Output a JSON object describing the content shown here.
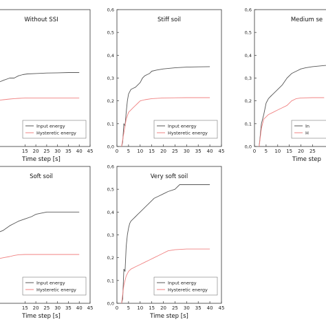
{
  "chart_data": [
    {
      "type": "line",
      "title": "Without SSI",
      "xlabel": "Time step [s]",
      "ylabel": "",
      "xlim": [
        0,
        45
      ],
      "ylim": [
        0,
        0.6
      ],
      "xticks": [
        "15",
        "20",
        "25",
        "30",
        "35",
        "40",
        "45"
      ],
      "yticks": [],
      "legend": "lower-right",
      "series": [
        {
          "name": "Input energy",
          "color": "#555555",
          "x": [
            0,
            5,
            8,
            10,
            12,
            14,
            16,
            20,
            25,
            30,
            35,
            40
          ],
          "y": [
            0.27,
            0.29,
            0.3,
            0.3,
            0.31,
            0.315,
            0.318,
            0.32,
            0.322,
            0.323,
            0.324,
            0.324
          ]
        },
        {
          "name": "Hysteretic energy",
          "color": "#f08080",
          "x": [
            0,
            5,
            8,
            10,
            12,
            14,
            16,
            20,
            25,
            30,
            35,
            40
          ],
          "y": [
            0.2,
            0.205,
            0.208,
            0.21,
            0.211,
            0.212,
            0.213,
            0.213,
            0.213,
            0.213,
            0.213,
            0.213
          ]
        }
      ]
    },
    {
      "type": "line",
      "title": "Stiff soil",
      "xlabel": "",
      "ylabel": "",
      "xlim": [
        0,
        45
      ],
      "ylim": [
        0,
        0.6
      ],
      "xticks": [
        "0",
        "5",
        "10",
        "15",
        "20",
        "25",
        "30",
        "35",
        "40",
        "45"
      ],
      "yticks": [
        "0,0",
        "0,1",
        "0,2",
        "0,3",
        "0,4",
        "0,5",
        "0,6"
      ],
      "legend": "lower-right",
      "series": [
        {
          "name": "Input energy",
          "color": "#555555",
          "x": [
            2,
            2.5,
            3,
            3.5,
            4,
            4.5,
            5,
            5.5,
            6,
            7,
            8,
            9,
            10,
            11,
            12,
            13,
            14,
            15,
            17,
            20,
            25,
            30,
            35,
            40
          ],
          "y": [
            0,
            0.02,
            0.1,
            0.09,
            0.15,
            0.2,
            0.23,
            0.24,
            0.25,
            0.255,
            0.26,
            0.27,
            0.28,
            0.3,
            0.31,
            0.315,
            0.32,
            0.33,
            0.335,
            0.34,
            0.345,
            0.348,
            0.349,
            0.35
          ]
        },
        {
          "name": "Hysteretic energy",
          "color": "#f08080",
          "x": [
            2,
            3,
            4,
            5,
            6,
            7,
            8,
            9,
            10,
            12,
            15,
            20,
            30,
            40
          ],
          "y": [
            0,
            0.06,
            0.12,
            0.15,
            0.16,
            0.17,
            0.18,
            0.19,
            0.2,
            0.205,
            0.21,
            0.213,
            0.214,
            0.214
          ]
        }
      ]
    },
    {
      "type": "line",
      "title": "Medium se",
      "xlabel": "Time step",
      "ylabel": "",
      "xlim": [
        0,
        45
      ],
      "ylim": [
        0,
        0.6
      ],
      "xticks": [
        "0",
        "5",
        "10",
        "15",
        "20",
        "25"
      ],
      "yticks": [
        "0,0",
        "0,1",
        "0,2",
        "0,3",
        "0,4",
        "0,5",
        "0,6"
      ],
      "legend": "lower-right",
      "legend_entries": [
        "In",
        "H"
      ],
      "series": [
        {
          "name": "",
          "color": "#555555",
          "x": [
            2,
            3,
            4,
            5,
            6,
            7,
            8,
            10,
            12,
            14,
            16,
            18,
            20,
            22,
            25,
            30,
            35,
            40
          ],
          "y": [
            0,
            0.1,
            0.14,
            0.19,
            0.21,
            0.22,
            0.23,
            0.25,
            0.27,
            0.3,
            0.32,
            0.33,
            0.34,
            0.345,
            0.35,
            0.355,
            0.36,
            0.365
          ]
        },
        {
          "name": "",
          "color": "#f08080",
          "x": [
            2,
            3,
            4,
            5,
            6,
            8,
            10,
            12,
            14,
            16,
            18,
            20,
            25,
            30
          ],
          "y": [
            0,
            0.08,
            0.12,
            0.13,
            0.14,
            0.15,
            0.16,
            0.17,
            0.18,
            0.2,
            0.21,
            0.213,
            0.214,
            0.214
          ]
        }
      ]
    },
    {
      "type": "line",
      "title": "Soft soil",
      "xlabel": "Time step [s]",
      "ylabel": "",
      "xlim": [
        0,
        45
      ],
      "ylim": [
        0,
        0.6
      ],
      "xticks": [
        "15",
        "20",
        "25",
        "30",
        "35",
        "40",
        "45"
      ],
      "yticks": [],
      "legend": "lower-right",
      "series": [
        {
          "name": "Input energy",
          "color": "#555555",
          "x": [
            0,
            5,
            8,
            10,
            12,
            15,
            18,
            20,
            25,
            30,
            35,
            40
          ],
          "y": [
            0.3,
            0.32,
            0.34,
            0.35,
            0.36,
            0.37,
            0.38,
            0.39,
            0.4,
            0.4,
            0.4,
            0.4
          ]
        },
        {
          "name": "Hysteretic energy",
          "color": "#f08080",
          "x": [
            0,
            5,
            8,
            10,
            12,
            15,
            20,
            30,
            40
          ],
          "y": [
            0.19,
            0.2,
            0.205,
            0.21,
            0.213,
            0.214,
            0.214,
            0.214,
            0.214
          ]
        }
      ]
    },
    {
      "type": "line",
      "title": "Very soft soil",
      "xlabel": "Time step [s]",
      "ylabel": "",
      "xlim": [
        0,
        45
      ],
      "ylim": [
        0,
        0.6
      ],
      "xticks": [
        "0",
        "5",
        "10",
        "15",
        "20",
        "25",
        "30",
        "35",
        "40",
        "45"
      ],
      "yticks": [
        "0,0",
        "0,1",
        "0,2",
        "0,3",
        "0,4",
        "0,5",
        "0,6"
      ],
      "legend": "lower-right",
      "series": [
        {
          "name": "Input energy",
          "color": "#555555",
          "x": [
            2,
            2.5,
            3,
            3.5,
            4,
            4.5,
            5,
            5.5,
            6,
            7,
            8,
            9,
            10,
            12,
            14,
            16,
            18,
            20,
            22,
            25,
            27,
            30,
            35,
            40
          ],
          "y": [
            0,
            0.02,
            0.15,
            0.14,
            0.25,
            0.3,
            0.33,
            0.35,
            0.36,
            0.37,
            0.38,
            0.39,
            0.4,
            0.42,
            0.44,
            0.46,
            0.47,
            0.48,
            0.49,
            0.5,
            0.52,
            0.52,
            0.52,
            0.52
          ]
        },
        {
          "name": "Hysteretic energy",
          "color": "#f08080",
          "x": [
            2,
            3,
            4,
            5,
            6,
            8,
            10,
            12,
            14,
            16,
            18,
            20,
            22,
            25,
            30,
            40
          ],
          "y": [
            0,
            0.08,
            0.12,
            0.14,
            0.15,
            0.16,
            0.17,
            0.18,
            0.19,
            0.2,
            0.21,
            0.22,
            0.23,
            0.235,
            0.238,
            0.238
          ]
        }
      ]
    }
  ]
}
